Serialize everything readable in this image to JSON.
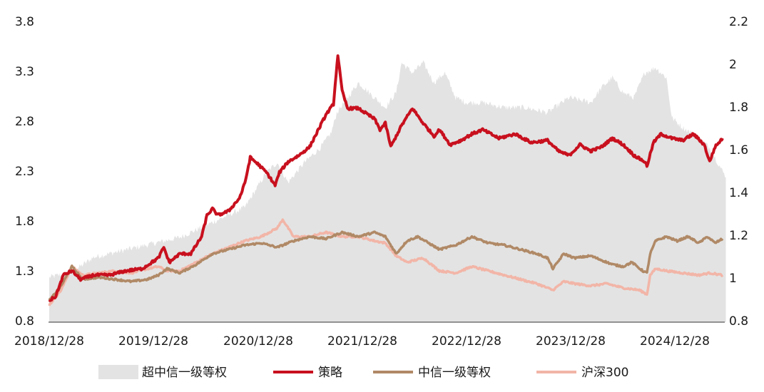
{
  "chart_data": {
    "type": "line",
    "x_tick_labels": [
      "2018/12/28",
      "2019/12/28",
      "2020/12/28",
      "2021/12/28",
      "2022/12/28",
      "2023/12/28",
      "2024/12/28"
    ],
    "left_axis": {
      "ylim": [
        0.8,
        3.8
      ],
      "ticks": [
        "0.8",
        "1.3",
        "1.8",
        "2.3",
        "2.8",
        "3.3",
        "3.8"
      ]
    },
    "right_axis": {
      "ylim": [
        0.8,
        2.2
      ],
      "ticks": [
        "0.8",
        "1",
        "1.2",
        "1.4",
        "1.6",
        "1.8",
        "2",
        "2.2"
      ]
    },
    "grid": false,
    "legend_position": "bottom",
    "series": [
      {
        "name": "超中信一级等权",
        "kind": "area",
        "axis": "left",
        "color": "#e3e3e3",
        "points": [
          [
            2018.99,
            1.25
          ],
          [
            2019.2,
            1.3
          ],
          [
            2019.4,
            1.45
          ],
          [
            2019.6,
            1.5
          ],
          [
            2019.8,
            1.55
          ],
          [
            2020.0,
            1.6
          ],
          [
            2020.2,
            1.65
          ],
          [
            2020.4,
            1.75
          ],
          [
            2020.6,
            1.85
          ],
          [
            2020.8,
            1.95
          ],
          [
            2021.0,
            2.3
          ],
          [
            2021.1,
            2.4
          ],
          [
            2021.2,
            2.2
          ],
          [
            2021.35,
            2.4
          ],
          [
            2021.5,
            2.55
          ],
          [
            2021.6,
            2.7
          ],
          [
            2021.65,
            2.9
          ],
          [
            2021.75,
            3.05
          ],
          [
            2021.85,
            3.2
          ],
          [
            2021.95,
            3.1
          ],
          [
            2022.1,
            2.95
          ],
          [
            2022.2,
            3.1
          ],
          [
            2022.25,
            3.4
          ],
          [
            2022.35,
            3.3
          ],
          [
            2022.45,
            3.4
          ],
          [
            2022.55,
            3.2
          ],
          [
            2022.65,
            3.3
          ],
          [
            2022.75,
            3.05
          ],
          [
            2022.85,
            3.0
          ],
          [
            2023.0,
            3.0
          ],
          [
            2023.2,
            2.95
          ],
          [
            2023.4,
            2.95
          ],
          [
            2023.6,
            2.9
          ],
          [
            2023.8,
            3.05
          ],
          [
            2024.0,
            3.0
          ],
          [
            2024.1,
            3.15
          ],
          [
            2024.2,
            3.25
          ],
          [
            2024.3,
            3.1
          ],
          [
            2024.4,
            3.05
          ],
          [
            2024.5,
            3.3
          ],
          [
            2024.6,
            3.35
          ],
          [
            2024.7,
            3.25
          ],
          [
            2024.75,
            2.85
          ],
          [
            2024.85,
            2.75
          ],
          [
            2025.0,
            2.65
          ],
          [
            2025.1,
            2.55
          ],
          [
            2025.15,
            2.45
          ],
          [
            2025.2,
            2.35
          ],
          [
            2025.25,
            2.25
          ]
        ]
      },
      {
        "name": "策略",
        "kind": "line",
        "axis": "right",
        "color": "#c8101e",
        "points": [
          [
            2018.99,
            0.9
          ],
          [
            2019.05,
            0.92
          ],
          [
            2019.12,
            1.02
          ],
          [
            2019.2,
            1.04
          ],
          [
            2019.28,
            1.0
          ],
          [
            2019.4,
            1.02
          ],
          [
            2019.55,
            1.02
          ],
          [
            2019.7,
            1.04
          ],
          [
            2019.85,
            1.05
          ],
          [
            2020.0,
            1.1
          ],
          [
            2020.05,
            1.15
          ],
          [
            2020.1,
            1.08
          ],
          [
            2020.2,
            1.12
          ],
          [
            2020.3,
            1.12
          ],
          [
            2020.4,
            1.2
          ],
          [
            2020.45,
            1.3
          ],
          [
            2020.5,
            1.33
          ],
          [
            2020.55,
            1.3
          ],
          [
            2020.65,
            1.32
          ],
          [
            2020.75,
            1.38
          ],
          [
            2020.8,
            1.45
          ],
          [
            2020.85,
            1.57
          ],
          [
            2020.92,
            1.54
          ],
          [
            2021.0,
            1.5
          ],
          [
            2021.08,
            1.44
          ],
          [
            2021.12,
            1.5
          ],
          [
            2021.2,
            1.55
          ],
          [
            2021.3,
            1.58
          ],
          [
            2021.4,
            1.62
          ],
          [
            2021.48,
            1.7
          ],
          [
            2021.55,
            1.77
          ],
          [
            2021.62,
            1.82
          ],
          [
            2021.66,
            2.05
          ],
          [
            2021.7,
            1.88
          ],
          [
            2021.75,
            1.8
          ],
          [
            2021.85,
            1.8
          ],
          [
            2022.0,
            1.75
          ],
          [
            2022.05,
            1.7
          ],
          [
            2022.1,
            1.73
          ],
          [
            2022.15,
            1.62
          ],
          [
            2022.2,
            1.67
          ],
          [
            2022.25,
            1.72
          ],
          [
            2022.35,
            1.8
          ],
          [
            2022.45,
            1.73
          ],
          [
            2022.55,
            1.67
          ],
          [
            2022.6,
            1.7
          ],
          [
            2022.7,
            1.63
          ],
          [
            2022.8,
            1.65
          ],
          [
            2022.9,
            1.68
          ],
          [
            2023.0,
            1.7
          ],
          [
            2023.15,
            1.66
          ],
          [
            2023.3,
            1.68
          ],
          [
            2023.45,
            1.64
          ],
          [
            2023.6,
            1.65
          ],
          [
            2023.7,
            1.6
          ],
          [
            2023.8,
            1.58
          ],
          [
            2023.9,
            1.63
          ],
          [
            2024.0,
            1.6
          ],
          [
            2024.1,
            1.62
          ],
          [
            2024.2,
            1.66
          ],
          [
            2024.3,
            1.63
          ],
          [
            2024.4,
            1.58
          ],
          [
            2024.5,
            1.55
          ],
          [
            2024.52,
            1.53
          ],
          [
            2024.58,
            1.64
          ],
          [
            2024.65,
            1.68
          ],
          [
            2024.75,
            1.66
          ],
          [
            2024.85,
            1.65
          ],
          [
            2024.95,
            1.68
          ],
          [
            2025.05,
            1.63
          ],
          [
            2025.1,
            1.55
          ],
          [
            2025.15,
            1.62
          ],
          [
            2025.22,
            1.66
          ]
        ]
      },
      {
        "name": "中信一级等权",
        "kind": "line",
        "axis": "right",
        "color": "#b08966",
        "points": [
          [
            2018.99,
            0.9
          ],
          [
            2019.1,
            0.97
          ],
          [
            2019.2,
            1.06
          ],
          [
            2019.3,
            1.0
          ],
          [
            2019.45,
            1.01
          ],
          [
            2019.6,
            1.0
          ],
          [
            2019.75,
            0.99
          ],
          [
            2019.9,
            1.0
          ],
          [
            2020.0,
            1.02
          ],
          [
            2020.08,
            1.05
          ],
          [
            2020.2,
            1.03
          ],
          [
            2020.35,
            1.07
          ],
          [
            2020.5,
            1.12
          ],
          [
            2020.65,
            1.14
          ],
          [
            2020.8,
            1.16
          ],
          [
            2020.95,
            1.17
          ],
          [
            2021.1,
            1.15
          ],
          [
            2021.25,
            1.18
          ],
          [
            2021.4,
            1.2
          ],
          [
            2021.55,
            1.19
          ],
          [
            2021.7,
            1.22
          ],
          [
            2021.85,
            1.2
          ],
          [
            2022.0,
            1.22
          ],
          [
            2022.1,
            1.2
          ],
          [
            2022.2,
            1.12
          ],
          [
            2022.3,
            1.18
          ],
          [
            2022.4,
            1.2
          ],
          [
            2022.5,
            1.17
          ],
          [
            2022.6,
            1.14
          ],
          [
            2022.75,
            1.16
          ],
          [
            2022.9,
            1.2
          ],
          [
            2023.05,
            1.17
          ],
          [
            2023.2,
            1.16
          ],
          [
            2023.35,
            1.14
          ],
          [
            2023.5,
            1.12
          ],
          [
            2023.6,
            1.1
          ],
          [
            2023.65,
            1.05
          ],
          [
            2023.75,
            1.12
          ],
          [
            2023.85,
            1.1
          ],
          [
            2024.0,
            1.11
          ],
          [
            2024.1,
            1.09
          ],
          [
            2024.2,
            1.07
          ],
          [
            2024.3,
            1.06
          ],
          [
            2024.38,
            1.08
          ],
          [
            2024.48,
            1.04
          ],
          [
            2024.52,
            1.03
          ],
          [
            2024.55,
            1.12
          ],
          [
            2024.6,
            1.18
          ],
          [
            2024.7,
            1.2
          ],
          [
            2024.8,
            1.18
          ],
          [
            2024.9,
            1.2
          ],
          [
            2025.0,
            1.17
          ],
          [
            2025.08,
            1.2
          ],
          [
            2025.15,
            1.17
          ],
          [
            2025.22,
            1.19
          ]
        ]
      },
      {
        "name": "沪深300",
        "kind": "line",
        "axis": "right",
        "color": "#f2b5a7",
        "points": [
          [
            2018.99,
            0.88
          ],
          [
            2019.1,
            0.95
          ],
          [
            2019.2,
            1.06
          ],
          [
            2019.3,
            1.02
          ],
          [
            2019.45,
            1.03
          ],
          [
            2019.6,
            1.04
          ],
          [
            2019.75,
            1.03
          ],
          [
            2019.9,
            1.05
          ],
          [
            2020.0,
            1.06
          ],
          [
            2020.08,
            1.04
          ],
          [
            2020.2,
            1.04
          ],
          [
            2020.35,
            1.08
          ],
          [
            2020.5,
            1.12
          ],
          [
            2020.65,
            1.15
          ],
          [
            2020.8,
            1.18
          ],
          [
            2020.95,
            1.2
          ],
          [
            2021.1,
            1.24
          ],
          [
            2021.15,
            1.28
          ],
          [
            2021.25,
            1.2
          ],
          [
            2021.4,
            1.2
          ],
          [
            2021.55,
            1.22
          ],
          [
            2021.7,
            1.2
          ],
          [
            2021.85,
            1.2
          ],
          [
            2022.0,
            1.18
          ],
          [
            2022.1,
            1.17
          ],
          [
            2022.2,
            1.11
          ],
          [
            2022.3,
            1.08
          ],
          [
            2022.45,
            1.1
          ],
          [
            2022.6,
            1.04
          ],
          [
            2022.75,
            1.03
          ],
          [
            2022.9,
            1.06
          ],
          [
            2023.05,
            1.04
          ],
          [
            2023.2,
            1.02
          ],
          [
            2023.35,
            1.0
          ],
          [
            2023.5,
            0.98
          ],
          [
            2023.65,
            0.95
          ],
          [
            2023.75,
            0.99
          ],
          [
            2023.85,
            0.98
          ],
          [
            2024.0,
            0.97
          ],
          [
            2024.15,
            0.98
          ],
          [
            2024.3,
            0.96
          ],
          [
            2024.45,
            0.95
          ],
          [
            2024.52,
            0.93
          ],
          [
            2024.55,
            1.02
          ],
          [
            2024.6,
            1.05
          ],
          [
            2024.7,
            1.04
          ],
          [
            2024.85,
            1.03
          ],
          [
            2025.0,
            1.02
          ],
          [
            2025.1,
            1.03
          ],
          [
            2025.22,
            1.02
          ]
        ]
      }
    ]
  }
}
